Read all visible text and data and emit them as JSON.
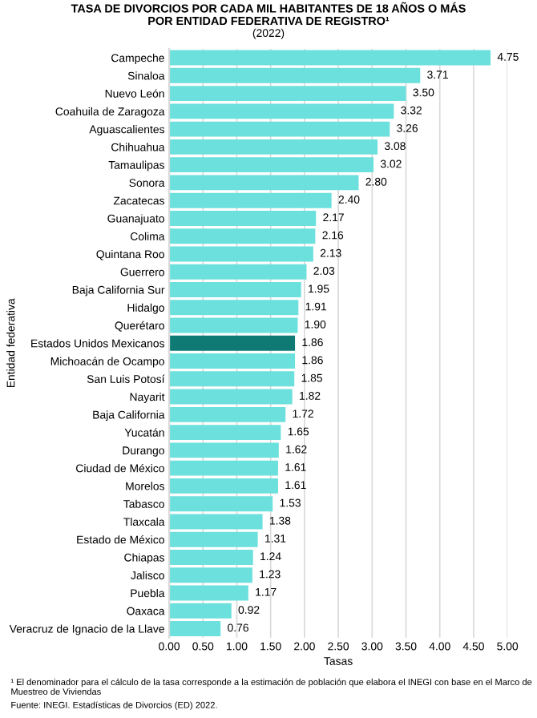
{
  "chart_data": {
    "type": "bar",
    "orientation": "horizontal",
    "title": "TASA DE DIVORCIOS POR CADA MIL HABITANTES DE 18 AÑOS O MÁS\nPOR ENTIDAD FEDERATIVA DE REGISTRO¹",
    "subtitle": "(2022)",
    "xlabel": "Tasas",
    "ylabel": "Entidad federativa",
    "categories": [
      "Campeche",
      "Sinaloa",
      "Nuevo León",
      "Coahuila de Zaragoza",
      "Aguascalientes",
      "Chihuahua",
      "Tamaulipas",
      "Sonora",
      "Zacatecas",
      "Guanajuato",
      "Colima",
      "Quintana Roo",
      "Guerrero",
      "Baja California Sur",
      "Hidalgo",
      "Querétaro",
      "Estados Unidos Mexicanos",
      "Michoacán de Ocampo",
      "San Luis Potosí",
      "Nayarit",
      "Baja California",
      "Yucatán",
      "Durango",
      "Ciudad de México",
      "Morelos",
      "Tabasco",
      "Tlaxcala",
      "Estado de México",
      "Chiapas",
      "Jalisco",
      "Puebla",
      "Oaxaca",
      "Veracruz de Ignacio de la Llave"
    ],
    "values": [
      4.75,
      3.71,
      3.5,
      3.32,
      3.26,
      3.08,
      3.02,
      2.8,
      2.4,
      2.17,
      2.16,
      2.13,
      2.03,
      1.95,
      1.91,
      1.9,
      1.86,
      1.86,
      1.85,
      1.82,
      1.72,
      1.65,
      1.62,
      1.61,
      1.61,
      1.53,
      1.38,
      1.31,
      1.24,
      1.23,
      1.17,
      0.92,
      0.76
    ],
    "value_labels": [
      "4.75",
      "3.71",
      "3.50",
      "3.32",
      "3.26",
      "3.08",
      "3.02",
      "2.80",
      "2.40",
      "2.17",
      "2.16",
      "2.13",
      "2.03",
      "1.95",
      "1.91",
      "1.90",
      "1.86",
      "1.86",
      "1.85",
      "1.82",
      "1.72",
      "1.65",
      "1.62",
      "1.61",
      "1.61",
      "1.53",
      "1.38",
      "1.31",
      "1.24",
      "1.23",
      "1.17",
      "0.92",
      "0.76"
    ],
    "colors": [
      "#6be0dc",
      "#6be0dc",
      "#6be0dc",
      "#6be0dc",
      "#6be0dc",
      "#6be0dc",
      "#6be0dc",
      "#6be0dc",
      "#6be0dc",
      "#6be0dc",
      "#6be0dc",
      "#6be0dc",
      "#6be0dc",
      "#6be0dc",
      "#6be0dc",
      "#6be0dc",
      "#0e7a73",
      "#6be0dc",
      "#6be0dc",
      "#6be0dc",
      "#6be0dc",
      "#6be0dc",
      "#6be0dc",
      "#6be0dc",
      "#6be0dc",
      "#6be0dc",
      "#6be0dc",
      "#6be0dc",
      "#6be0dc",
      "#6be0dc",
      "#6be0dc",
      "#6be0dc",
      "#6be0dc"
    ],
    "xlim": [
      0,
      5
    ],
    "xticks": [
      {
        "value": 0,
        "label": "0.00"
      },
      {
        "value": 0.5,
        "label": "0.50"
      },
      {
        "value": 1,
        "label": "1.00"
      },
      {
        "value": 1.5,
        "label": "1.50"
      },
      {
        "value": 2,
        "label": "2.00"
      },
      {
        "value": 2.5,
        "label": "2.50"
      },
      {
        "value": 3,
        "label": "3.00"
      },
      {
        "value": 3.5,
        "label": "3.50"
      },
      {
        "value": 4,
        "label": "4.00"
      },
      {
        "value": 4.5,
        "label": "4.50"
      },
      {
        "value": 5,
        "label": "5.00"
      }
    ],
    "grid": "x",
    "legend": false,
    "annotations": [
      "¹ El denominador para el cálculo de la tasa corresponde a la estimación de población que elabora el INEGI con base en el Marco de Muestreo de Viviendas",
      "Fuente: INEGI. Estadísticas de Divorcios (ED) 2022."
    ]
  }
}
